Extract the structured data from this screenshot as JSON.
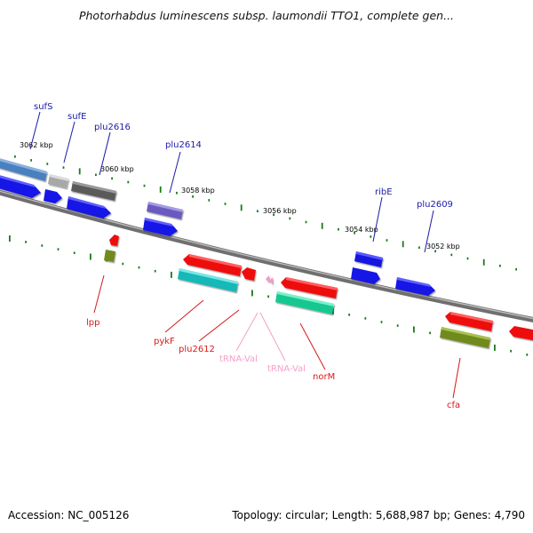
{
  "title": "Photorhabdus luminescens subsp. laumondii TTO1, complete gen...",
  "footer": {
    "accession_label": "Accession:",
    "accession": "NC_005126",
    "topology_label": "Topology:",
    "topology": "circular",
    "length_label": "Length:",
    "length": "5,688,987 bp",
    "genes_label": "Genes:",
    "genes": "4,790"
  },
  "colors": {
    "backbone": "#888888",
    "forward_tick": "#1a7a1a",
    "reverse_tick": "#1a7a1a",
    "forward_label": "#1a1aa8",
    "reverse_label": "#d81818",
    "trna_label": "#f4a0c8",
    "scale_label": "#000000"
  },
  "scale_labels": [
    "3062 kbp",
    "3060 kbp",
    "3058 kbp",
    "3056 kbp",
    "3054 kbp",
    "3052 kbp"
  ],
  "forward_gene_labels": [
    "sufS",
    "sufE",
    "plu2616",
    "plu2614",
    "ribE",
    "plu2609"
  ],
  "reverse_gene_labels": [
    "lpp",
    "pykF",
    "plu2612",
    "tRNA-Val",
    "tRNA-Val",
    "norM",
    "cfa"
  ]
}
